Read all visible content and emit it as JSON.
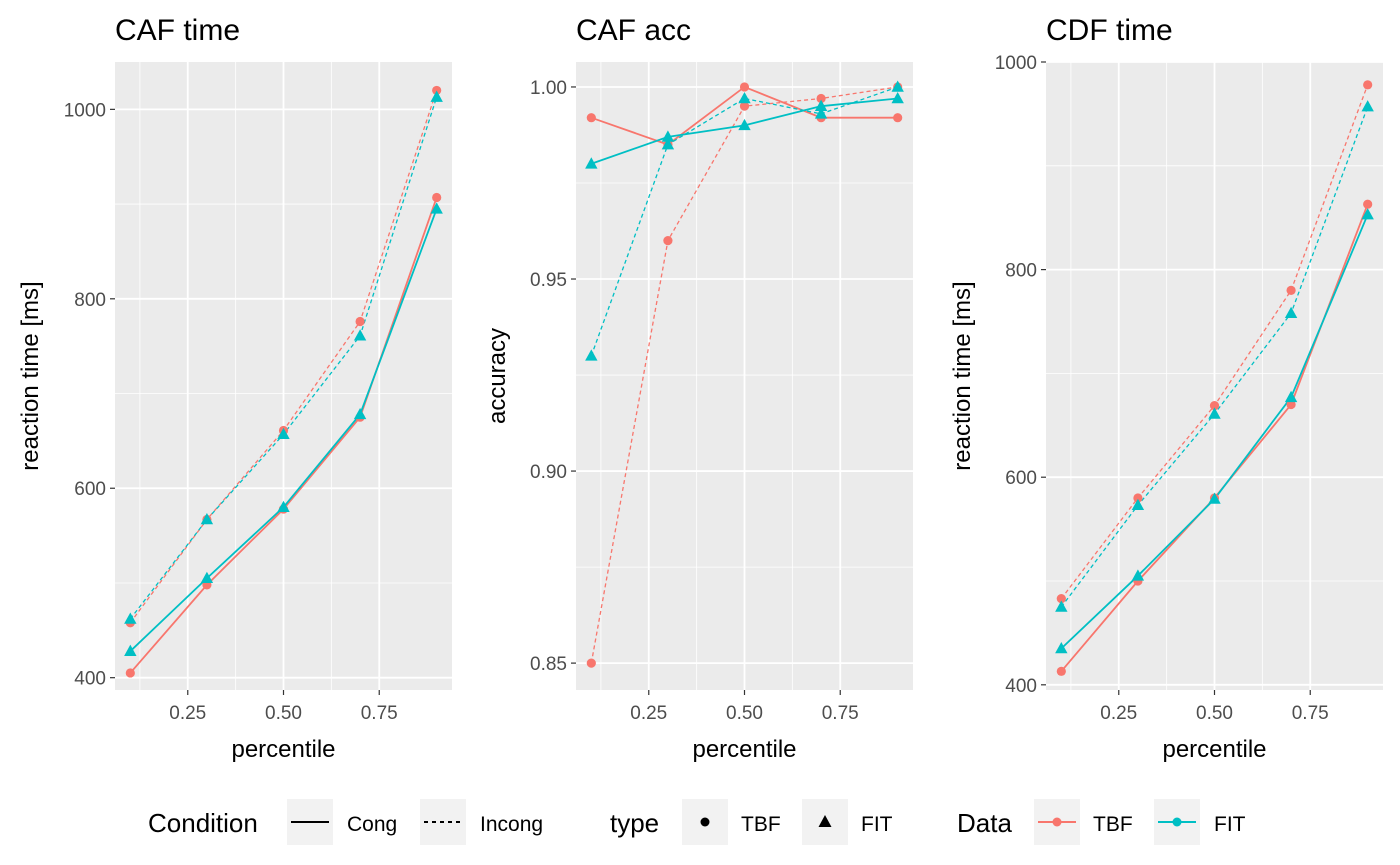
{
  "colors": {
    "TBF": "#F8766D",
    "FIT": "#00BFC4",
    "panel": "#EBEBEB",
    "grid": "#FFFFFF",
    "tick": "#4D4D4D"
  },
  "chart_data": [
    {
      "type": "line",
      "title": "CAF time",
      "xlabel": "percentile",
      "ylabel": "reaction time [ms]",
      "xlim": [
        0.06,
        0.94
      ],
      "ylim": [
        387,
        1050
      ],
      "xticks": [
        0.25,
        0.5,
        0.75
      ],
      "xtick_labels": [
        "0.25",
        "0.50",
        "0.75"
      ],
      "yticks": [
        400,
        600,
        800,
        1000
      ],
      "ytick_labels": [
        "400",
        "600",
        "800",
        "1000"
      ],
      "x": [
        0.1,
        0.3,
        0.5,
        0.7,
        0.9
      ],
      "series": [
        {
          "data": "TBF",
          "type": "TBF",
          "condition": "Cong",
          "values": [
            405,
            498,
            578,
            675,
            907
          ]
        },
        {
          "data": "TBF",
          "type": "TBF",
          "condition": "Incong",
          "values": [
            458,
            567,
            661,
            776,
            1020
          ]
        },
        {
          "data": "FIT",
          "type": "FIT",
          "condition": "Cong",
          "values": [
            428,
            505,
            580,
            678,
            895
          ]
        },
        {
          "data": "FIT",
          "type": "FIT",
          "condition": "Incong",
          "values": [
            462,
            567,
            657,
            761,
            1013
          ]
        }
      ]
    },
    {
      "type": "line",
      "title": "CAF acc",
      "xlabel": "percentile",
      "ylabel": "accuracy",
      "xlim": [
        0.06,
        0.94
      ],
      "ylim": [
        0.843,
        1.0065
      ],
      "xticks": [
        0.25,
        0.5,
        0.75
      ],
      "xtick_labels": [
        "0.25",
        "0.50",
        "0.75"
      ],
      "yticks": [
        0.85,
        0.9,
        0.95,
        1.0
      ],
      "ytick_labels": [
        "0.85",
        "0.90",
        "0.95",
        "1.00"
      ],
      "x": [
        0.1,
        0.3,
        0.5,
        0.7,
        0.9
      ],
      "series": [
        {
          "data": "TBF",
          "type": "TBF",
          "condition": "Cong",
          "values": [
            0.992,
            0.985,
            1.0,
            0.992,
            0.992
          ]
        },
        {
          "data": "TBF",
          "type": "TBF",
          "condition": "Incong",
          "values": [
            0.85,
            0.96,
            0.995,
            0.997,
            1.0
          ]
        },
        {
          "data": "FIT",
          "type": "FIT",
          "condition": "Cong",
          "values": [
            0.98,
            0.987,
            0.99,
            0.995,
            0.997
          ]
        },
        {
          "data": "FIT",
          "type": "FIT",
          "condition": "Incong",
          "values": [
            0.93,
            0.985,
            0.997,
            0.993,
            1.0
          ]
        }
      ]
    },
    {
      "type": "line",
      "title": "CDF time",
      "xlabel": "percentile",
      "ylabel": "reaction time [ms]",
      "xlim": [
        0.06,
        0.94
      ],
      "ylim": [
        395,
        1000
      ],
      "xticks": [
        0.25,
        0.5,
        0.75
      ],
      "xtick_labels": [
        "0.25",
        "0.50",
        "0.75"
      ],
      "yticks": [
        400,
        600,
        800,
        1000
      ],
      "ytick_labels": [
        "400",
        "600",
        "800",
        "1000"
      ],
      "x": [
        0.1,
        0.3,
        0.5,
        0.7,
        0.9
      ],
      "series": [
        {
          "data": "TBF",
          "type": "TBF",
          "condition": "Cong",
          "values": [
            413,
            500,
            580,
            670,
            863
          ]
        },
        {
          "data": "TBF",
          "type": "TBF",
          "condition": "Incong",
          "values": [
            483,
            580,
            669,
            780,
            978
          ]
        },
        {
          "data": "FIT",
          "type": "FIT",
          "condition": "Cong",
          "values": [
            435,
            505,
            579,
            677,
            853
          ]
        },
        {
          "data": "FIT",
          "type": "FIT",
          "condition": "Incong",
          "values": [
            475,
            573,
            661,
            758,
            957
          ]
        }
      ]
    }
  ],
  "legend": {
    "condition": {
      "title": "Condition",
      "items": [
        "Cong",
        "Incong"
      ]
    },
    "type": {
      "title": "type",
      "items": [
        "TBF",
        "FIT"
      ]
    },
    "data": {
      "title": "Data",
      "items": [
        "TBF",
        "FIT"
      ]
    }
  }
}
